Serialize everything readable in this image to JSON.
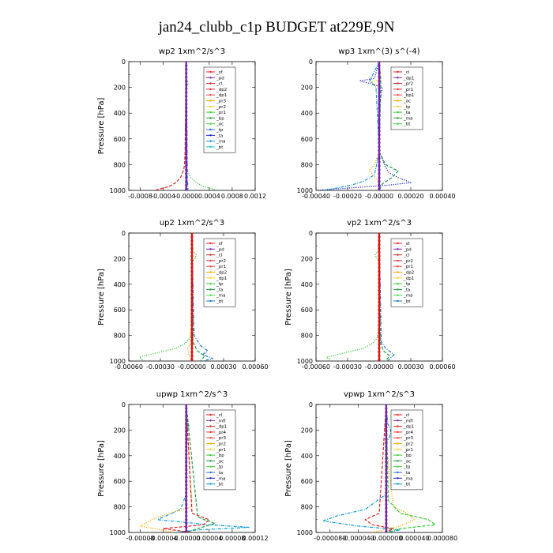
{
  "chart_data": {
    "title": "jan24_clubb_c1p  BUDGET at229E,9N",
    "type": "line",
    "panels": [
      {
        "id": "wp2",
        "title": "wp2   1xm^2/s^3",
        "ylabel": "Pressure [hPa]",
        "xlim": [
          -0.001,
          0.0012
        ],
        "ylim": [
          1000,
          0
        ],
        "xticks": [
          "-0.0008",
          "-0.0004",
          "-0.0000",
          "0.0004",
          "0.0008",
          "0.0012"
        ],
        "xtick_values": [
          -0.0008,
          -0.0004,
          0.0,
          0.0004,
          0.0008,
          0.0012
        ],
        "yticks": [
          "0",
          "200",
          "400",
          "600",
          "800",
          "1000"
        ],
        "legend": [
          "_sf",
          "_pd",
          "_cl",
          "_dp2",
          "_dp1",
          "_pr3",
          "_pr2",
          "_pr1",
          "_bp",
          "_ac",
          "_tp",
          "_ta",
          "_ma",
          "_bt"
        ],
        "series": [
          {
            "name": "_dp1",
            "color": "#dd2222",
            "style": "dash",
            "p": [
              0,
              700,
              800,
              830,
              860,
              900,
              940,
              970,
              1000
            ],
            "v": [
              0,
              -2e-05,
              -3e-05,
              -4e-05,
              -6e-05,
              -0.0001,
              -0.00018,
              -0.0003,
              -0.00055
            ]
          },
          {
            "name": "_pr1",
            "color": "#33cc33",
            "style": "dot",
            "p": [
              0,
              140,
              160,
              180,
              200,
              700,
              850,
              900,
              940,
              970,
              1000
            ],
            "v": [
              0,
              1e-05,
              3e-05,
              3e-05,
              0.0,
              0,
              2e-05,
              8e-05,
              0.00018,
              0.0003,
              0.00055
            ]
          },
          {
            "name": "_ac",
            "color": "#2277cc",
            "style": "dashdot",
            "p": [
              0,
              900,
              1000
            ],
            "v": [
              0,
              2e-05,
              3e-05
            ]
          },
          {
            "name": "_pd",
            "color": "#7722aa",
            "style": "solid",
            "marker": true,
            "p": [
              0,
              1000
            ],
            "v": [
              0,
              0
            ]
          }
        ]
      },
      {
        "id": "wp3",
        "title": "wp3   1xm^(3) s^(-4)",
        "ylabel": "",
        "xlim": [
          -0.0004,
          0.0004
        ],
        "ylim": [
          1000,
          0
        ],
        "xticks": [
          "-0.00040",
          "-0.00020",
          "-0.00000",
          "0.00020",
          "0.00040"
        ],
        "xtick_values": [
          -0.0004,
          -0.0002,
          0.0,
          0.0002,
          0.0004
        ],
        "yticks": [
          "0",
          "200",
          "400",
          "600",
          "800",
          "1000"
        ],
        "legend": [
          "_cl",
          "_dp1",
          "_pr2",
          "_pr1",
          "_bp1",
          "_ac",
          "_tp",
          "_ta",
          "_ma",
          "_bt"
        ],
        "series": [
          {
            "name": "_tp",
            "color": "#2222cc",
            "style": "dot",
            "p": [
              0,
              130,
              150,
              170,
              200,
              350,
              700,
              820,
              860,
              900,
              940,
              960,
              1000
            ],
            "v": [
              0,
              -3e-05,
              -0.00012,
              -6e-05,
              2e-05,
              0,
              0,
              4e-05,
              6e-05,
              0.00012,
              0.0002,
              5e-05,
              -0.0004
            ]
          },
          {
            "name": "_ta",
            "color": "#1199dd",
            "style": "dashdot",
            "p": [
              0,
              150,
              200,
              700,
              880,
              930,
              960,
              1000
            ],
            "v": [
              0,
              -6e-05,
              -2e-05,
              0,
              -3e-05,
              -0.0001,
              -0.00018,
              -0.00035
            ]
          },
          {
            "name": "_pr2",
            "color": "#ffaa00",
            "style": "dot",
            "p": [
              0,
              140,
              160,
              200,
              700,
              800,
              840,
              880,
              920,
              1000
            ],
            "v": [
              0,
              1e-05,
              -5e-05,
              0,
              0,
              -3e-05,
              -6e-05,
              -4e-05,
              -1e-05,
              0
            ]
          },
          {
            "name": "_ac",
            "color": "#229944",
            "style": "dash",
            "p": [
              0,
              150,
              700,
              800,
              850,
              900,
              950,
              1000
            ],
            "v": [
              0,
              1e-05,
              0,
              4e-05,
              0.00012,
              8e-05,
              2e-05,
              0
            ]
          },
          {
            "name": "_cl",
            "color": "#7722aa",
            "style": "solid",
            "marker": true,
            "p": [
              0,
              1000
            ],
            "v": [
              0,
              0
            ]
          }
        ]
      },
      {
        "id": "up2",
        "title": "up2   1xm^2/s^3",
        "ylabel": "Pressure [hPa]",
        "xlim": [
          -0.0006,
          0.0006
        ],
        "ylim": [
          1000,
          0
        ],
        "xticks": [
          "-0.00060",
          "-0.00030",
          "-0.00000",
          "0.00030",
          "0.00060"
        ],
        "xtick_values": [
          -0.0006,
          -0.0003,
          0.0,
          0.0003,
          0.0006
        ],
        "yticks": [
          "0",
          "200",
          "400",
          "600",
          "800",
          "1000"
        ],
        "legend": [
          "_sf",
          "_pd",
          "_cl",
          "_pr2",
          "_pr1",
          "_dp2",
          "_dp1",
          "_tp",
          "_ta",
          "_ma",
          "_bt"
        ],
        "series": [
          {
            "name": "_dp1",
            "color": "#33cc33",
            "style": "dot",
            "p": [
              0,
              140,
              170,
              200,
              230,
              700,
              820,
              860,
              900,
              940,
              970,
              1000
            ],
            "v": [
              0,
              1e-05,
              4e-05,
              3e-05,
              0,
              0,
              -2e-05,
              -6e-05,
              -0.00015,
              -0.00035,
              -0.0005,
              -0.00045
            ]
          },
          {
            "name": "_tp",
            "color": "#2277cc",
            "style": "dashdot",
            "p": [
              0,
              800,
              880,
              920,
              950,
              980,
              1000
            ],
            "v": [
              0,
              2e-05,
              8e-05,
              0.00015,
              0.0001,
              0.0002,
              0.0001
            ]
          },
          {
            "name": "_ta",
            "color": "#229944",
            "style": "dash",
            "p": [
              0,
              850,
              920,
              960,
              1000
            ],
            "v": [
              0,
              1e-05,
              5e-05,
              0.00012,
              8e-05
            ]
          },
          {
            "name": "_pr2",
            "color": "#ffaa00",
            "style": "dot",
            "p": [
              0,
              850,
              900,
              950,
              1000
            ],
            "v": [
              0,
              -1e-05,
              -4e-05,
              -3e-05,
              0
            ]
          },
          {
            "name": "_cl",
            "color": "#dd1111",
            "style": "solid",
            "marker": true,
            "p": [
              0,
              1000
            ],
            "v": [
              0,
              0
            ]
          }
        ]
      },
      {
        "id": "vp2",
        "title": "vp2   1xm^2/s^3",
        "ylabel": "Pressure [hPa]",
        "xlim": [
          -0.0006,
          0.0006
        ],
        "ylim": [
          1000,
          0
        ],
        "xticks": [
          "-0.00060",
          "-0.00030",
          "-0.00000",
          "0.00030",
          "0.00060"
        ],
        "xtick_values": [
          -0.0006,
          -0.0003,
          0.0,
          0.0003,
          0.0006
        ],
        "yticks": [
          "0",
          "200",
          "400",
          "600",
          "800",
          "1000"
        ],
        "legend": [
          "_sf",
          "_pd",
          "_cl",
          "_pr2",
          "_pr1",
          "_dp2",
          "_dp1",
          "_tp",
          "_ta",
          "_ma",
          "_bt"
        ],
        "series": [
          {
            "name": "_dp1",
            "color": "#33cc33",
            "style": "dot",
            "p": [
              0,
              140,
              170,
              200,
              230,
              700,
              820,
              860,
              900,
              940,
              970,
              1000
            ],
            "v": [
              0,
              -1e-05,
              -4e-05,
              -2e-05,
              0,
              0,
              -2e-05,
              -6e-05,
              -0.00015,
              -0.00035,
              -0.0005,
              -0.00045
            ]
          },
          {
            "name": "_tp",
            "color": "#2277cc",
            "style": "dashdot",
            "p": [
              0,
              850,
              900,
              950,
              1000
            ],
            "v": [
              0,
              2e-05,
              6e-05,
              0.00014,
              8e-05
            ]
          },
          {
            "name": "_ta",
            "color": "#229944",
            "style": "dash",
            "p": [
              0,
              850,
              920,
              960,
              1000
            ],
            "v": [
              0,
              1e-05,
              4e-05,
              0.0001,
              6e-05
            ]
          },
          {
            "name": "_cl",
            "color": "#dd1111",
            "style": "solid",
            "marker": true,
            "p": [
              0,
              1000
            ],
            "v": [
              0,
              0
            ]
          }
        ]
      },
      {
        "id": "upwp",
        "title": "upwp   1xm^2/s^3",
        "ylabel": "Pressure [hPa]",
        "xlim": [
          -0.0001,
          0.00012
        ],
        "ylim": [
          1000,
          0
        ],
        "xticks": [
          "-0.00008",
          "-0.00004",
          "-0.00000",
          "0.00004",
          "0.00008",
          "0.00012"
        ],
        "xtick_values": [
          -8e-05,
          -4e-05,
          0.0,
          4e-05,
          8e-05,
          0.00012
        ],
        "yticks": [
          "0",
          "200",
          "400",
          "600",
          "800",
          "1000"
        ],
        "legend": [
          "_cl",
          "_mfl",
          "_dp1",
          "_pr4",
          "_pr3",
          "_pr2",
          "_pr1",
          "_bp",
          "_ac",
          "_tp",
          "_ta",
          "_ma",
          "_bt"
        ],
        "series": [
          {
            "name": "_tp",
            "color": "#1199dd",
            "style": "dashdot",
            "p": [
              0,
              140,
              170,
              200,
              700,
              820,
              860,
              900,
              940,
              960,
              980,
              1000
            ],
            "v": [
              0,
              2e-06,
              5e-06,
              1e-06,
              0,
              -1e-05,
              -3e-05,
              -5e-05,
              4e-05,
              0.00011,
              2e-05,
              -2e-05
            ]
          },
          {
            "name": "_pr2",
            "color": "#ffaa00",
            "style": "dot",
            "p": [
              0,
              800,
              850,
              900,
              950,
              1000
            ],
            "v": [
              0,
              1e-05,
              -3e-05,
              -6e-05,
              -8e-05,
              -2e-05
            ]
          },
          {
            "name": "_pr1",
            "color": "#dd2222",
            "style": "dash",
            "p": [
              0,
              850,
              900,
              940,
              970,
              1000
            ],
            "v": [
              0,
              1e-05,
              4e-05,
              3e-05,
              -4e-05,
              1e-05
            ]
          },
          {
            "name": "_bp",
            "color": "#229944",
            "style": "dash",
            "p": [
              0,
              880,
              930,
              970,
              1000
            ],
            "v": [
              0,
              2e-05,
              5e-05,
              2e-05,
              0
            ]
          },
          {
            "name": "_cl",
            "color": "#7722aa",
            "style": "solid",
            "marker": true,
            "p": [
              0,
              1000
            ],
            "v": [
              0,
              0
            ]
          }
        ]
      },
      {
        "id": "vpwp",
        "title": "vpwp   1xm^2/s^3",
        "ylabel": "Pressure [hPa]",
        "xlim": [
          -0.0001,
          8e-05
        ],
        "ylim": [
          1000,
          0
        ],
        "xticks": [
          "-0.000080",
          "-0.000040",
          "-0.000000",
          "0.000040",
          "0.000080"
        ],
        "xtick_values": [
          -8e-05,
          -4e-05,
          0.0,
          4e-05,
          8e-05
        ],
        "yticks": [
          "0",
          "200",
          "400",
          "600",
          "800",
          "1000"
        ],
        "legend": [
          "_cl",
          "_mfl",
          "_dp1",
          "_pr4",
          "_pr3",
          "_pr2",
          "_pr1",
          "_bp",
          "_ac",
          "_tp",
          "_ta",
          "_ma",
          "_bt"
        ],
        "series": [
          {
            "name": "_tp",
            "color": "#1199dd",
            "style": "dashdot",
            "p": [
              0,
              150,
              180,
              220,
              260,
              300,
              700,
              820,
              870,
              910,
              950,
              980,
              1000
            ],
            "v": [
              0,
              2e-06,
              5e-06,
              7e-06,
              4e-06,
              0,
              0,
              -3e-05,
              -7e-05,
              -9e-05,
              -4e-05,
              2e-05,
              0
            ]
          },
          {
            "name": "_pr2",
            "color": "#ffaa00",
            "style": "dot",
            "p": [
              0,
              260,
              280,
              300,
              800,
              850,
              900,
              950,
              1000
            ],
            "v": [
              0,
              -3e-06,
              -4e-06,
              0,
              1e-05,
              3e-05,
              4e-05,
              2e-05,
              -2e-05
            ]
          },
          {
            "name": "_ac",
            "color": "#33cc33",
            "style": "dash",
            "p": [
              0,
              750,
              850,
              900,
              940,
              970,
              1000
            ],
            "v": [
              0,
              3e-06,
              2e-05,
              6e-05,
              7e-05,
              2e-05,
              0
            ]
          },
          {
            "name": "_pr1",
            "color": "#dd2222",
            "style": "dash",
            "p": [
              0,
              850,
              900,
              940,
              970,
              1000
            ],
            "v": [
              0,
              -1e-05,
              -3e-05,
              -2e-05,
              1e-05,
              0
            ]
          },
          {
            "name": "_cl",
            "color": "#7722aa",
            "style": "solid",
            "marker": true,
            "p": [
              0,
              1000
            ],
            "v": [
              0,
              0
            ]
          }
        ]
      }
    ]
  },
  "legend_colors": [
    "#ff2222",
    "#7722aa",
    "#cc2222",
    "#ee3333",
    "#ff4444",
    "#ffaa00",
    "#ffcc33",
    "#33cc33",
    "#229944",
    "#44dd44",
    "#2277cc",
    "#2222cc",
    "#1199dd",
    "#22cccc"
  ]
}
